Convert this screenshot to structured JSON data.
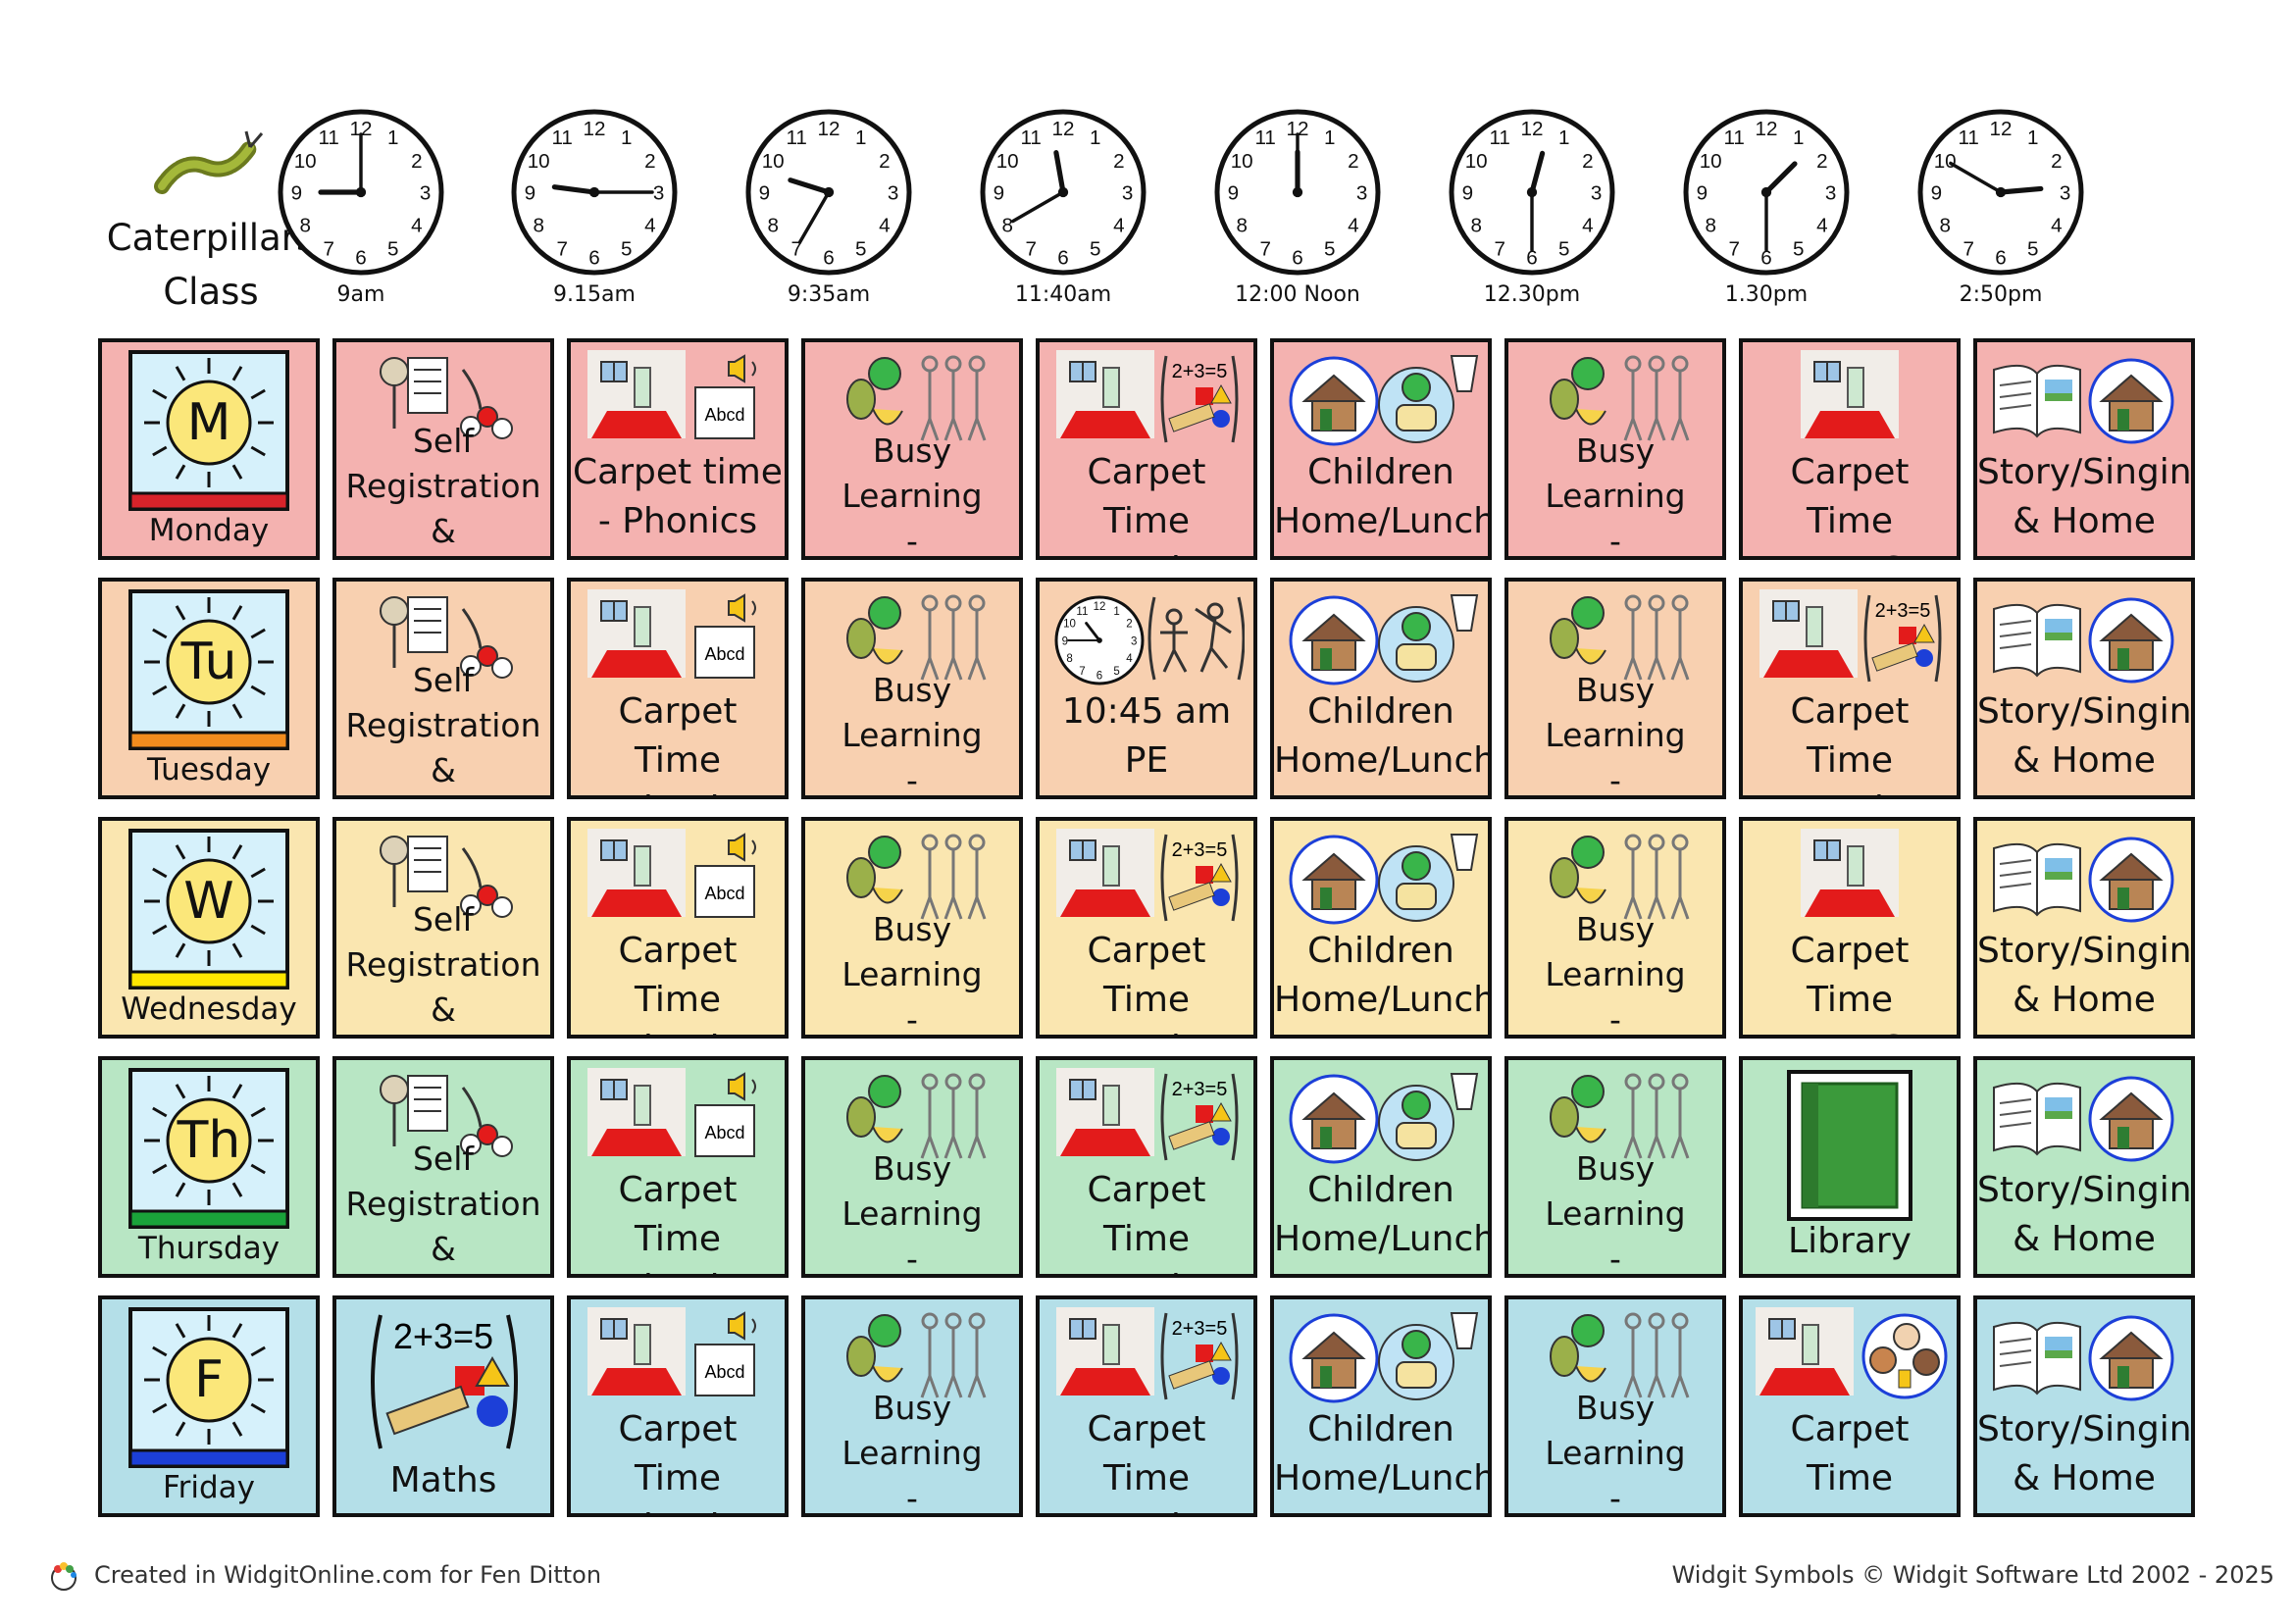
{
  "class_title": "Caterpillars\nClass",
  "colors": {
    "row0": "#f4b2b0",
    "row1": "#f8d0b0",
    "row2": "#fae6b0",
    "row3": "#b8e6c4",
    "row4": "#b4dfe8",
    "strip0": "#d8232a",
    "strip1": "#f28c1e",
    "strip2": "#ffe600",
    "strip3": "#1aa33a",
    "strip4": "#1c3fd8"
  },
  "times": [
    {
      "label": "9am",
      "hour": 9,
      "minute": 0
    },
    {
      "label": "9.15am",
      "hour": 9,
      "minute": 15
    },
    {
      "label": "9:35am",
      "hour": 9,
      "minute": 35
    },
    {
      "label": "11:40am",
      "hour": 11,
      "minute": 40
    },
    {
      "label": "12:00 Noon",
      "hour": 12,
      "minute": 0
    },
    {
      "label": "12.30pm",
      "hour": 12,
      "minute": 30
    },
    {
      "label": "1.30pm",
      "hour": 1,
      "minute": 30
    },
    {
      "label": "2:50pm",
      "hour": 2,
      "minute": 50
    }
  ],
  "days": [
    {
      "letter": "M",
      "name": "Monday"
    },
    {
      "letter": "Tu",
      "name": "Tuesday"
    },
    {
      "letter": "W",
      "name": "Wednesday"
    },
    {
      "letter": "Th",
      "name": "Thursday"
    },
    {
      "letter": "F",
      "name": "Friday"
    }
  ],
  "rows": [
    [
      {
        "text": "Self\nRegistration &\nChoosing",
        "icon": "registration"
      },
      {
        "text": "Carpet time\n- Phonics",
        "icon": "carpet-phonics"
      },
      {
        "text": "Busy Learning\n-\nSnack/Groups",
        "icon": "busy-learning"
      },
      {
        "text": "Carpet Time\n- Maths",
        "icon": "carpet-maths"
      },
      {
        "text": "Children\nHome/Lunch",
        "icon": "home-lunch"
      },
      {
        "text": "Busy Learning\n-\nSnack/Groups",
        "icon": "busy-learning"
      },
      {
        "text": "Carpet Time\n- EYFS",
        "icon": "carpet"
      },
      {
        "text": "Story/Singing\n& Home",
        "icon": "story-home"
      }
    ],
    [
      {
        "text": "Self\nRegistration &\nChoosing",
        "icon": "registration"
      },
      {
        "text": "Carpet Time\n- Phonics",
        "icon": "carpet-phonics"
      },
      {
        "text": "Busy Learning\n-\nSnack/Groups",
        "icon": "busy-learning"
      },
      {
        "text": "10:45 am\nPE",
        "icon": "pe-clock"
      },
      {
        "text": "Children\nHome/Lunch",
        "icon": "home-lunch"
      },
      {
        "text": "Busy Learning\n-\nSnack/Groups",
        "icon": "busy-learning"
      },
      {
        "text": "Carpet Time\n- Maths",
        "icon": "carpet-maths"
      },
      {
        "text": "Story/Singing\n& Home",
        "icon": "story-home"
      }
    ],
    [
      {
        "text": "Self\nRegistration &\nChoosing",
        "icon": "registration"
      },
      {
        "text": "Carpet Time\n- Phonics",
        "icon": "carpet-phonics"
      },
      {
        "text": "Busy Learning\n-\nSnack/Groups",
        "icon": "busy-learning"
      },
      {
        "text": "Carpet Time\n- Maths",
        "icon": "carpet-maths"
      },
      {
        "text": "Children\nHome/Lunch",
        "icon": "home-lunch"
      },
      {
        "text": "Busy Learning\n-\nSnack/Groups",
        "icon": "busy-learning"
      },
      {
        "text": "Carpet Time\n- EYFS",
        "icon": "carpet"
      },
      {
        "text": "Story/Singing\n& Home",
        "icon": "story-home"
      }
    ],
    [
      {
        "text": "Self\nRegistration &\nChoosing",
        "icon": "registration"
      },
      {
        "text": "Carpet Time\n- Phonics",
        "icon": "carpet-phonics"
      },
      {
        "text": "Busy Learning\n-\nSnack/Groups",
        "icon": "busy-learning"
      },
      {
        "text": "Carpet Time\n- Maths",
        "icon": "carpet-maths"
      },
      {
        "text": "Children\nHome/Lunch",
        "icon": "home-lunch"
      },
      {
        "text": "Busy Learning\n-\nSnack/Groups",
        "icon": "busy-learning"
      },
      {
        "text": "Library",
        "icon": "library-book"
      },
      {
        "text": "Story/Singing\n& Home",
        "icon": "story-home"
      }
    ],
    [
      {
        "text": "Maths",
        "icon": "maths"
      },
      {
        "text": "Carpet Time\n- Phonics",
        "icon": "carpet-phonics"
      },
      {
        "text": "Busy Learning\n-\nSnack/Groups",
        "icon": "busy-learning"
      },
      {
        "text": "Carpet Time\n- Maths",
        "icon": "carpet-maths"
      },
      {
        "text": "Children\nHome/Lunch",
        "icon": "home-lunch"
      },
      {
        "text": "Busy Learning\n-\nSnack/Groups",
        "icon": "busy-learning"
      },
      {
        "text": "Carpet Time\n- Celebration",
        "icon": "carpet-celebration"
      },
      {
        "text": "Story/Singing\n& Home",
        "icon": "story-home"
      }
    ]
  ],
  "footer": {
    "left": "Created in WidgitOnline.com for Fen Ditton",
    "right": "Widgit Symbols © Widgit Software Ltd 2002 - 2025"
  }
}
